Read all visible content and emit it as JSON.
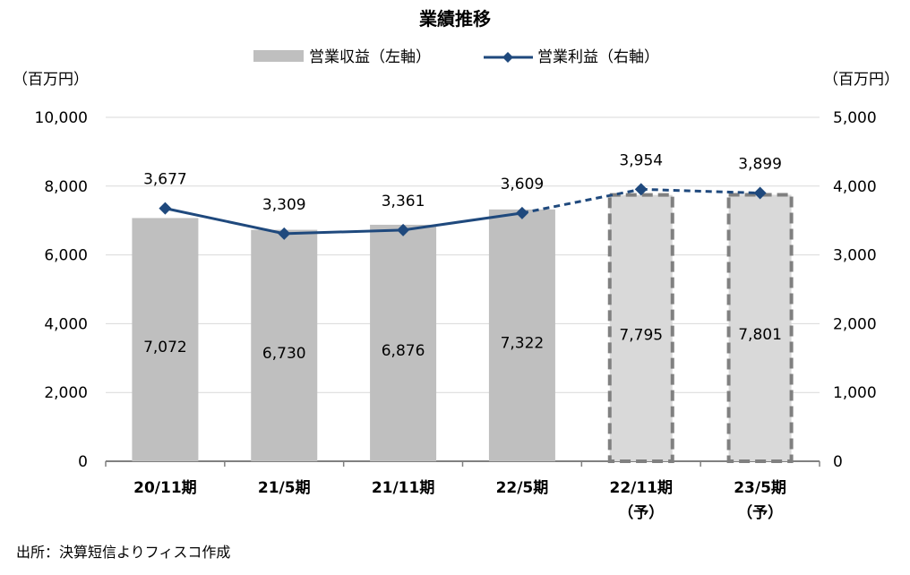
{
  "chart_data": {
    "type": "bar+line",
    "title": "業績推移",
    "categories": [
      "20/11期",
      "21/5期",
      "21/11期",
      "22/5期",
      "22/11期",
      "23/5期"
    ],
    "category_sublabels": [
      "",
      "",
      "",
      "",
      "（予）",
      "（予）"
    ],
    "forecast": [
      false,
      false,
      false,
      false,
      true,
      true
    ],
    "series": [
      {
        "name": "営業収益（左軸）",
        "type": "bar",
        "axis": "left",
        "values": [
          7072,
          6730,
          6876,
          7322,
          7795,
          7801
        ],
        "color": "#bfbfbf",
        "forecast_color": "#d9d9d9",
        "forecast_border": "#808080"
      },
      {
        "name": "営業利益（右軸）",
        "type": "line",
        "axis": "right",
        "values": [
          3677,
          3309,
          3361,
          3609,
          3954,
          3899
        ],
        "color": "#1f497d",
        "marker": "diamond"
      }
    ],
    "left_axis": {
      "unit": "（百万円）",
      "ylim": [
        0,
        10000
      ],
      "ticks": [
        "0",
        "2,000",
        "4,000",
        "6,000",
        "8,000",
        "10,000"
      ]
    },
    "right_axis": {
      "unit": "（百万円）",
      "ylim": [
        0,
        5000
      ],
      "ticks": [
        "0",
        "1,000",
        "2,000",
        "3,000",
        "4,000",
        "5,000"
      ]
    },
    "bar_labels": [
      "7,072",
      "6,730",
      "6,876",
      "7,322",
      "7,795",
      "7,801"
    ],
    "line_labels": [
      "3,677",
      "3,309",
      "3,361",
      "3,609",
      "3,954",
      "3,899"
    ],
    "grid": true,
    "legend": "top-center"
  },
  "source": "出所：決算短信よりフィスコ作成"
}
